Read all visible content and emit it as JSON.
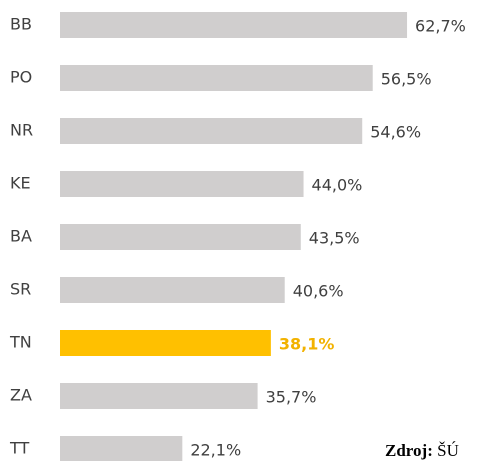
{
  "chart_data": {
    "type": "bar",
    "orientation": "horizontal",
    "categories": [
      "BB",
      "PO",
      "NR",
      "KE",
      "BA",
      "SR",
      "TN",
      "ZA",
      "TT"
    ],
    "values": [
      62.7,
      56.5,
      54.6,
      44.0,
      43.5,
      40.6,
      38.1,
      35.7,
      22.1
    ],
    "value_labels": [
      "62,7%",
      "56,5%",
      "54,6%",
      "44,0%",
      "43,5%",
      "40,6%",
      "38,1%",
      "35,7%",
      "22,1%"
    ],
    "color": "#d0cece",
    "highlight": "TN",
    "highlight_color": "#ffc000",
    "highlight_label_color": "#f2b200",
    "source_label": "Zdroj:",
    "source": "ŠÚ"
  }
}
